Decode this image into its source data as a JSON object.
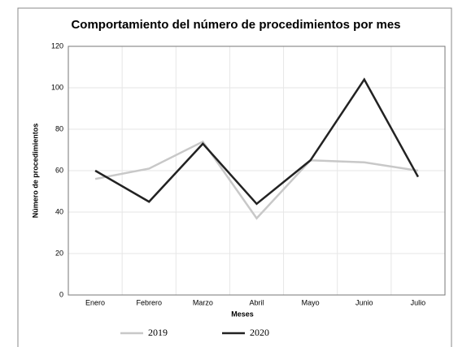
{
  "chart_data": {
    "type": "line",
    "title": "Comportamiento del número de procedimientos por mes",
    "x_label": "Meses",
    "y_label": "Número de procedimientos",
    "categories": [
      "Enero",
      "Febrero",
      "Marzo",
      "Abril",
      "Mayo",
      "Junio",
      "Julio"
    ],
    "series": [
      {
        "name": "2019",
        "color": "#c8c8c8",
        "values": [
          56,
          61,
          74,
          37,
          65,
          64,
          60
        ]
      },
      {
        "name": "2020",
        "color": "#222222",
        "values": [
          60,
          45,
          73,
          44,
          65,
          104,
          57
        ]
      }
    ],
    "ylim": [
      0,
      120
    ],
    "yticks": [
      0,
      20,
      40,
      60,
      80,
      100,
      120
    ],
    "grid": true
  }
}
